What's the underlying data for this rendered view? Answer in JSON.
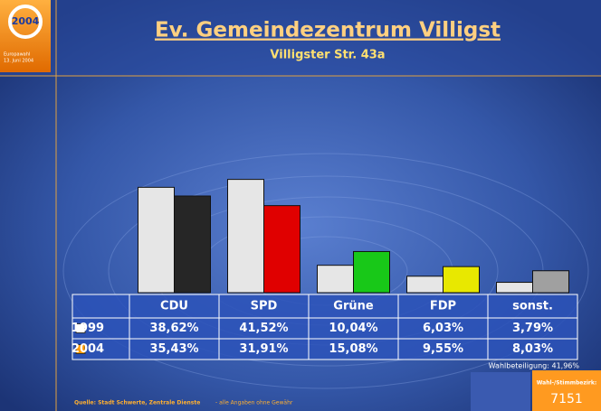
{
  "logo": {
    "year": "2004",
    "line1": "Europawahl",
    "line2": "13. Juni 2004"
  },
  "header": {
    "title": "Ev. Gemeindezentrum Villigst",
    "subtitle": "Villigster Str. 43a"
  },
  "chart_data": {
    "type": "bar",
    "categories": [
      "CDU",
      "SPD",
      "Grüne",
      "FDP",
      "sonst."
    ],
    "series": [
      {
        "name": "1999",
        "color": "#ffffff",
        "bar_colors": [
          "#e6e6e6",
          "#e6e6e6",
          "#e6e6e6",
          "#e6e6e6",
          "#e6e6e6"
        ],
        "values": [
          38.62,
          41.52,
          10.04,
          6.03,
          3.79
        ],
        "value_labels": [
          "38,62%",
          "41,52%",
          "10,04%",
          "6,03%",
          "3,79%"
        ]
      },
      {
        "name": "2004",
        "color": "#ff9900",
        "bar_colors": [
          "#262626",
          "#e00000",
          "#18c818",
          "#e8e800",
          "#a0a0a0"
        ],
        "values": [
          35.43,
          31.91,
          15.08,
          9.55,
          8.03
        ],
        "value_labels": [
          "35,43%",
          "31,91%",
          "15,08%",
          "9,55%",
          "8,03%"
        ]
      }
    ]
  },
  "turnout": "Wahlbeteiligung: 41,96%",
  "district": {
    "label": "Wahl-/Stimmbezirk:",
    "number": "7151"
  },
  "source": {
    "name": "Quelle: Stadt Schwerte, Zentrale Dienste",
    "note": "- alle Angaben ohne Gewähr"
  }
}
